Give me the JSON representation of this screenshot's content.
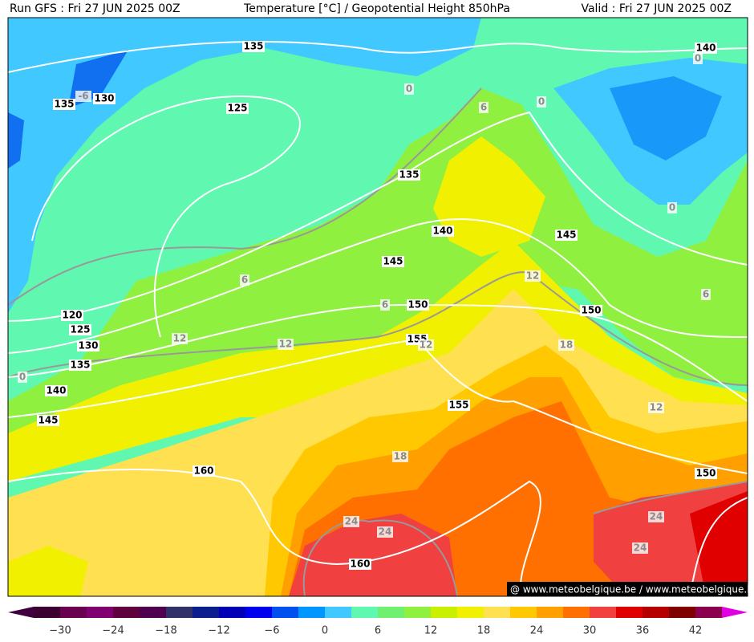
{
  "header": {
    "run": "Run GFS : Fri 27 JUN 2025 00Z",
    "title": "Temperature [°C] / Geopotential Height 850hPa",
    "valid": "Valid : Fri 27 JUN 2025 00Z"
  },
  "height_labels": [
    "135",
    "140",
    "135",
    "130",
    "125",
    "135",
    "140",
    "145",
    "145",
    "150",
    "150",
    "120",
    "125",
    "130",
    "135",
    "140",
    "145",
    "155",
    "155",
    "160",
    "150",
    "160"
  ],
  "temperature_labels": [
    "-6",
    "0",
    "0",
    "0",
    "6",
    "0",
    "6",
    "6",
    "12",
    "6",
    "12",
    "12",
    "12",
    "18",
    "0",
    "12",
    "18",
    "24",
    "24",
    "24",
    "24"
  ],
  "watermark": "@ www.meteobelgique.be / www.meteobelgique.be",
  "colorbar": {
    "labels": [
      "−30",
      "−24",
      "−18",
      "−12",
      "−6",
      "0",
      "6",
      "12",
      "18",
      "24",
      "30",
      "36",
      "42"
    ],
    "colors": [
      "#3c0030",
      "#6a0050",
      "#800070",
      "#60003c",
      "#500050",
      "#30306a",
      "#0a1e8c",
      "#0000b4",
      "#0000f0",
      "#0050f0",
      "#0096ff",
      "#40c8ff",
      "#60f8b0",
      "#70f070",
      "#90f040",
      "#c8f000",
      "#f0f000",
      "#ffe050",
      "#ffc800",
      "#ffa000",
      "#ff7000",
      "#f04040",
      "#e00000",
      "#b40000",
      "#800000",
      "#8c0050"
    ],
    "low_color": "#400040",
    "high_color": "#e000e0"
  }
}
